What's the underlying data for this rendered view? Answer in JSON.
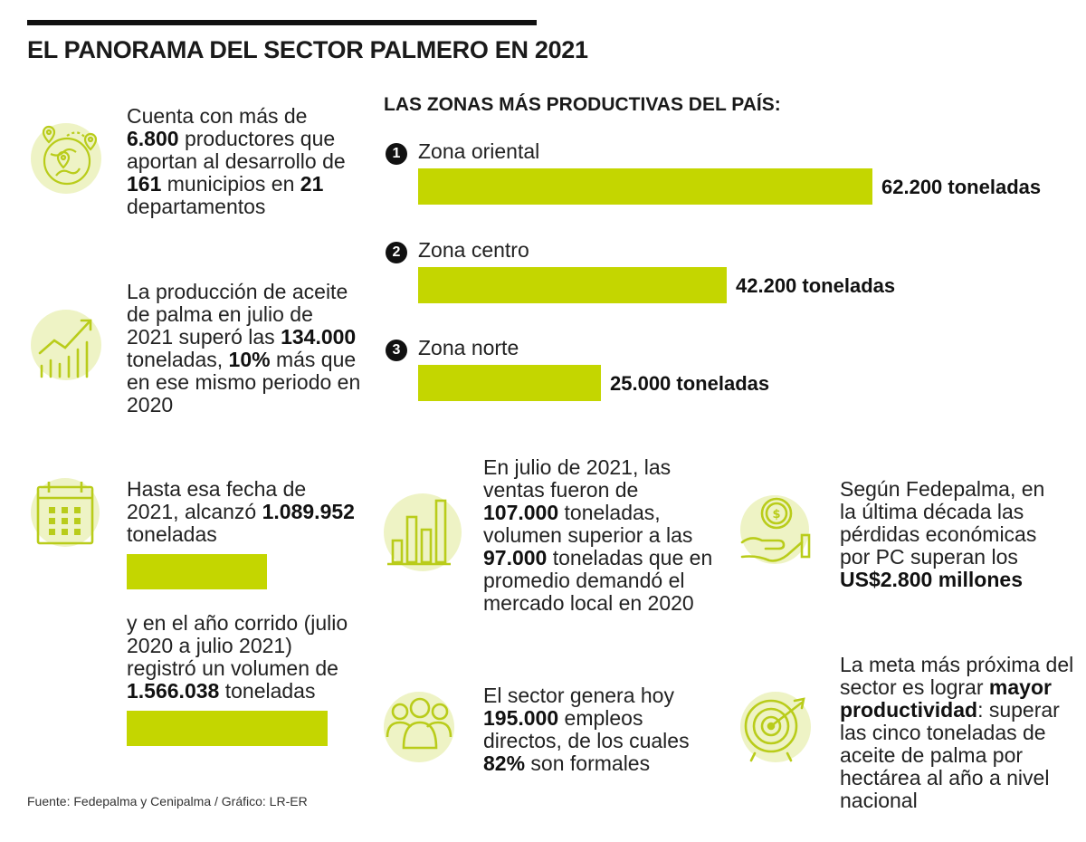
{
  "title": "EL PANORAMA DEL SECTOR PALMERO EN 2021",
  "colors": {
    "accent": "#c4d600",
    "icon_bg": "#eef3c5",
    "icon_stroke": "#b9cc1a",
    "text": "#1a1a1a"
  },
  "icons": [
    "map-pins-globe-icon",
    "growth-chart-icon",
    "calendar-icon",
    "bar-chart-icon",
    "money-hand-icon",
    "people-group-icon",
    "target-arrow-icon"
  ],
  "block_productores": {
    "p1": "Cuenta con más de",
    "n1": "6.800",
    "p2": " productores que aportan al desarrollo de ",
    "n2": "161",
    "p3": " municipios en ",
    "n3": "21",
    "p4": " departamentos"
  },
  "block_produccion": {
    "p1": "La producción de aceite de palma en julio de 2021 superó las ",
    "n1": "134.000",
    "p2": " toneladas, ",
    "n2": "10%",
    "p3": " más que en ese mismo periodo en 2020"
  },
  "block_acumulado": {
    "p1": "Hasta esa fecha de 2021, alcanzó ",
    "n1": "1.089.952",
    "p2": " toneladas",
    "p3": "y en el año corrido (julio 2020 a julio 2021) registró un volumen de ",
    "n2": "1.566.038",
    "p4": " toneladas"
  },
  "block_ventas": {
    "p1": "En julio de 2021, las ventas fueron de ",
    "n1": "107.000",
    "p2": " toneladas, volumen superior a las ",
    "n2": "97.000",
    "p3": " toneladas que en promedio demandó el mercado local en 2020"
  },
  "block_perdidas": {
    "p1": "Según Fedepalma, en la última década las pérdidas económicas por PC superan los ",
    "n1": "US$2.800 millones"
  },
  "block_empleo": {
    "p1": "El sector genera hoy ",
    "n1": "195.000",
    "p2": " empleos directos, de los cuales ",
    "n2": "82%",
    "p3": " son formales"
  },
  "block_meta": {
    "p1": "La meta más próxima del sector es lograr ",
    "n1": "mayor productividad",
    "p2": ": superar las cinco toneladas de aceite de palma por hectárea al año a nivel nacional"
  },
  "source": "Fuente: Fedepalma y Cenipalma / Gráfico: LR-ER",
  "chart_data": [
    {
      "type": "bar",
      "orientation": "horizontal",
      "title": "LAS ZONAS MÁS PRODUCTIVAS DEL PAÍS:",
      "categories": [
        "Zona oriental",
        "Zona centro",
        "Zona norte"
      ],
      "rank_labels": [
        "1",
        "2",
        "3"
      ],
      "values": [
        62200,
        42200,
        25000
      ],
      "value_labels": [
        "62.200 toneladas",
        "42.200 toneladas",
        "25.000 toneladas"
      ],
      "unit": "toneladas",
      "color": "#c4d600",
      "grid": false
    },
    {
      "type": "bar",
      "orientation": "horizontal",
      "values": [
        1089952,
        1566038
      ],
      "unit": "toneladas",
      "color": "#c4d600",
      "grid": false
    }
  ]
}
